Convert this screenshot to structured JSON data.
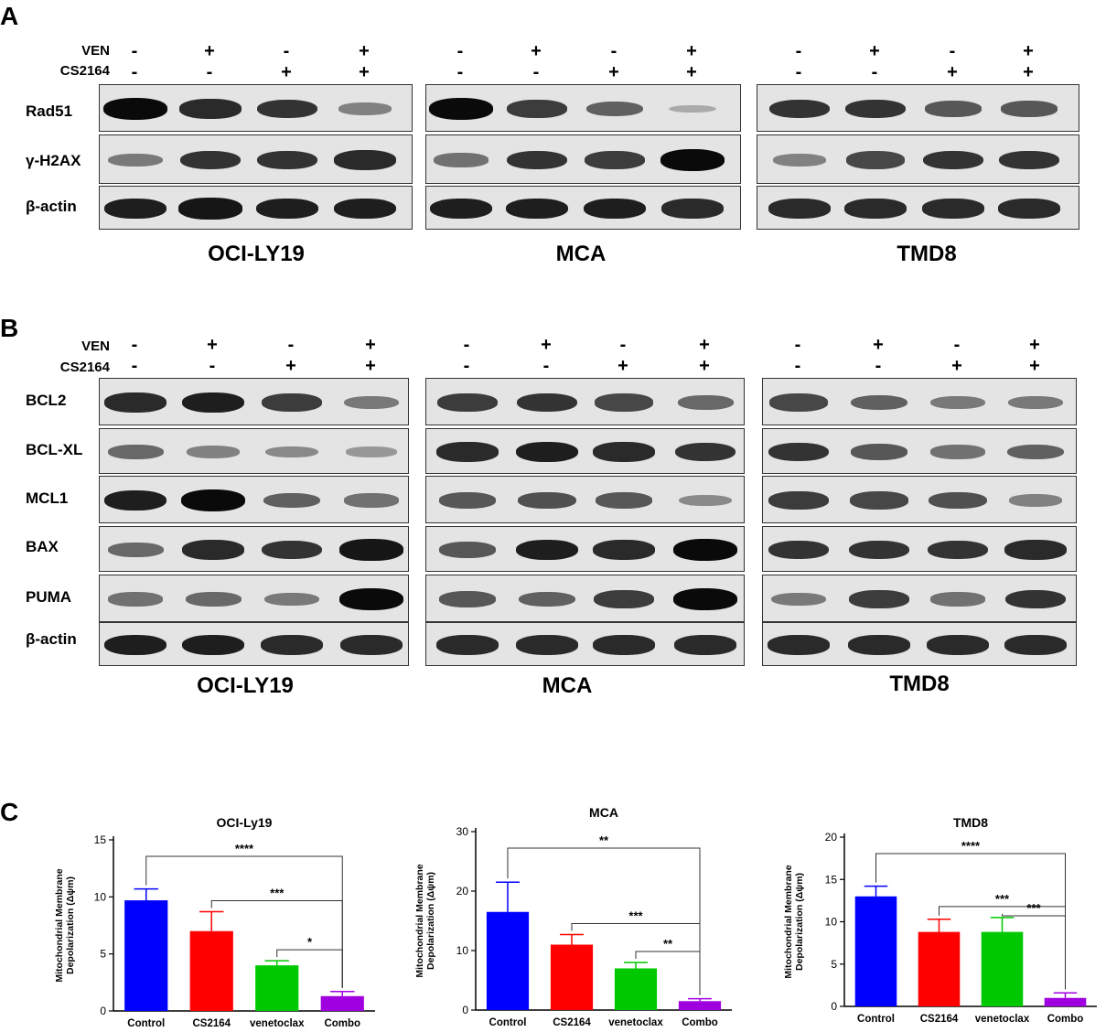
{
  "panels": {
    "A": {
      "letter": "A",
      "treatments": [
        {
          "name": "VEN",
          "signs": [
            "-",
            "+",
            "-",
            "+"
          ]
        },
        {
          "name": "CS2164",
          "signs": [
            "-",
            "-",
            "+",
            "+"
          ]
        }
      ],
      "rows": [
        "Rad51",
        "γ-H2AX",
        "β-actin"
      ],
      "cell_lines": [
        "OCI-LY19",
        "MCA",
        "TMD8"
      ]
    },
    "B": {
      "letter": "B",
      "treatments": [
        {
          "name": "VEN",
          "signs": [
            "-",
            "+",
            "-",
            "+"
          ]
        },
        {
          "name": "CS2164",
          "signs": [
            "-",
            "-",
            "+",
            "+"
          ]
        }
      ],
      "rows": [
        "BCL2",
        "BCL-XL",
        "MCL1",
        "BAX",
        "PUMA",
        "β-actin"
      ],
      "cell_lines": [
        "OCI-LY19",
        "MCA",
        "TMD8"
      ]
    },
    "C": {
      "letter": "C"
    }
  },
  "chart_data": [
    {
      "type": "bar",
      "title": "OCI-Ly19",
      "ylabel": "Mitochondrial Membrane Depolarization (Δψm)",
      "categories": [
        "Control",
        "CS2164",
        "venetoclax",
        "Combo"
      ],
      "values": [
        9.7,
        7.0,
        4.0,
        1.3
      ],
      "errors": [
        1.0,
        1.7,
        0.4,
        0.4
      ],
      "colors": [
        "#0000ff",
        "#ff0000",
        "#00c800",
        "#a000e0"
      ],
      "ylim": [
        0,
        15
      ],
      "yticks": [
        0,
        5,
        10,
        15
      ],
      "significance": [
        {
          "from": 0,
          "to": 3,
          "label": "****"
        },
        {
          "from": 1,
          "to": 3,
          "label": "***"
        },
        {
          "from": 2,
          "to": 3,
          "label": "*"
        }
      ]
    },
    {
      "type": "bar",
      "title": "MCA",
      "ylabel": "Mitochondrial Membrane Depolarization (Δψm)",
      "categories": [
        "Control",
        "CS2164",
        "venetoclax",
        "Combo"
      ],
      "values": [
        16.5,
        11.0,
        7.0,
        1.5
      ],
      "errors": [
        5.0,
        1.7,
        1.0,
        0.4
      ],
      "colors": [
        "#0000ff",
        "#ff0000",
        "#00c800",
        "#a000e0"
      ],
      "ylim": [
        0,
        30
      ],
      "yticks": [
        0,
        10,
        20,
        30
      ],
      "significance": [
        {
          "from": 0,
          "to": 3,
          "label": "**"
        },
        {
          "from": 1,
          "to": 3,
          "label": "***"
        },
        {
          "from": 2,
          "to": 3,
          "label": "**"
        }
      ]
    },
    {
      "type": "bar",
      "title": "TMD8",
      "ylabel": "Mitochondrial Membrane Depolarization (Δψm)",
      "categories": [
        "Control",
        "CS2164",
        "venetoclax",
        "Combo"
      ],
      "values": [
        13.0,
        8.8,
        8.8,
        1.0
      ],
      "errors": [
        1.2,
        1.5,
        1.7,
        0.6
      ],
      "colors": [
        "#0000ff",
        "#ff0000",
        "#00c800",
        "#a000e0"
      ],
      "ylim": [
        0,
        20
      ],
      "yticks": [
        0,
        5,
        10,
        15,
        20
      ],
      "significance": [
        {
          "from": 0,
          "to": 3,
          "label": "****"
        },
        {
          "from": 1,
          "to": 3,
          "label": "***"
        },
        {
          "from": 2,
          "to": 3,
          "label": "***"
        }
      ]
    }
  ]
}
